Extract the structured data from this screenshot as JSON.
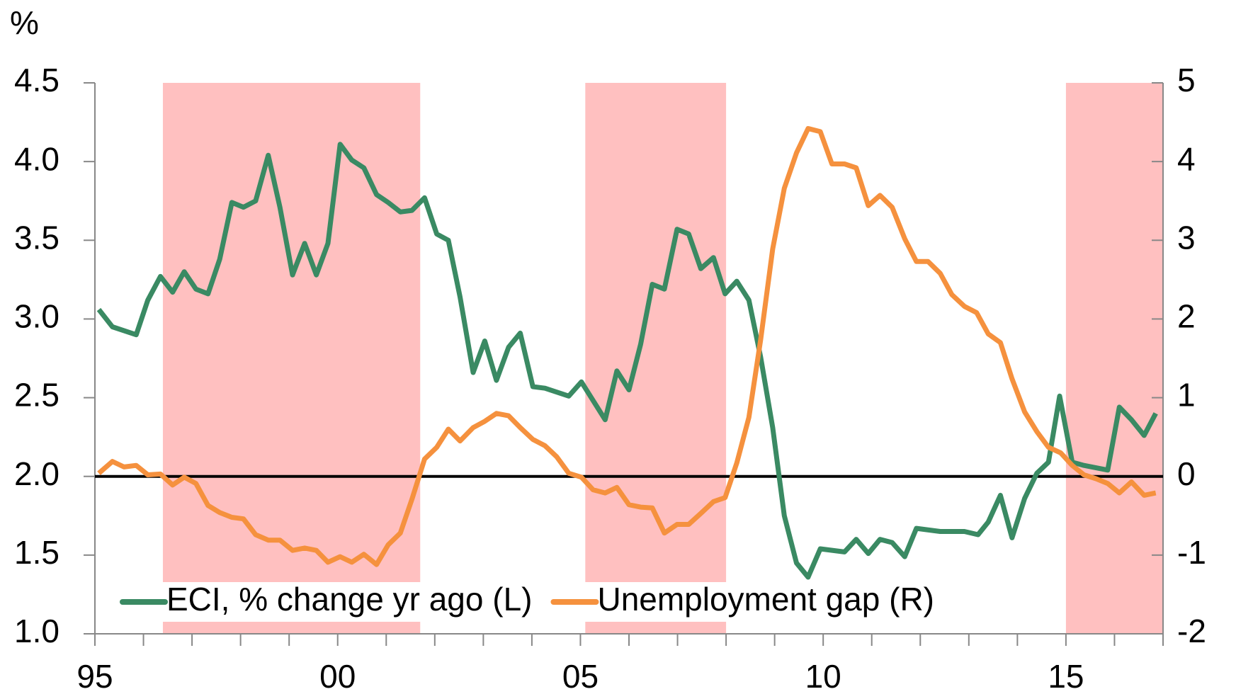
{
  "chart_data": {
    "type": "line",
    "y_unit_label": "%",
    "xlim": [
      1995,
      2017
    ],
    "xticks": [
      {
        "value": 1995,
        "label": "95"
      },
      {
        "value": 2000,
        "label": "00"
      },
      {
        "value": 2005,
        "label": "05"
      },
      {
        "value": 2010,
        "label": "10"
      },
      {
        "value": 2015,
        "label": "15"
      }
    ],
    "xminor_ticks": [
      1996,
      1997,
      1998,
      1999,
      2001,
      2002,
      2003,
      2004,
      2006,
      2007,
      2008,
      2009,
      2011,
      2012,
      2013,
      2014,
      2016,
      2017
    ],
    "ylim": [
      1.0,
      4.5
    ],
    "yticks": [
      {
        "value": 1.0,
        "label": "1.0"
      },
      1.5,
      {
        "value": 2.0,
        "label": "2.0"
      },
      2.5,
      {
        "value": 3.0,
        "label": "3.0"
      },
      3.5,
      {
        "value": 4.0,
        "label": "4.0"
      },
      4.5
    ],
    "y2lim": [
      -2,
      5
    ],
    "y2ticks": [
      -2,
      -1,
      0,
      1,
      2,
      3,
      4,
      5
    ],
    "reference_line": {
      "value": 0,
      "axis": "y2",
      "color": "#000000"
    },
    "shaded_periods": [
      [
        1996.4,
        2001.7
      ],
      [
        2005.1,
        2008.0
      ],
      [
        2015.0,
        2017.0
      ]
    ],
    "shade_color": "#ffc0c0",
    "legend": "bottom-left",
    "series": [
      {
        "name": "ECI, % change yr ago (L)",
        "color": "#3a8a63",
        "axis": "y",
        "x": [
          1995.08,
          1995.36,
          1995.85,
          1996.09,
          1996.35,
          1996.6,
          1996.84,
          1997.08,
          1997.33,
          1997.57,
          1997.82,
          1998.06,
          1998.31,
          1998.57,
          1998.81,
          1999.07,
          1999.32,
          1999.56,
          1999.8,
          2000.05,
          2000.29,
          2000.54,
          2000.8,
          2001.04,
          2001.29,
          2001.53,
          2001.79,
          2002.04,
          2002.28,
          2002.52,
          2002.79,
          2003.03,
          2003.27,
          2003.52,
          2003.76,
          2004.02,
          2004.27,
          2004.76,
          2005.02,
          2005.51,
          2005.75,
          2006.0,
          2006.24,
          2006.48,
          2006.73,
          2006.99,
          2007.23,
          2007.48,
          2007.74,
          2007.98,
          2008.22,
          2008.47,
          2008.71,
          2008.96,
          2009.2,
          2009.45,
          2009.69,
          2009.94,
          2010.44,
          2010.68,
          2010.93,
          2011.17,
          2011.42,
          2011.68,
          2011.92,
          2012.41,
          2012.91,
          2013.19,
          2013.4,
          2013.65,
          2013.89,
          2014.15,
          2014.4,
          2014.64,
          2014.87,
          2015.13,
          2015.37,
          2015.86,
          2016.1,
          2016.35,
          2016.61,
          2016.85
        ],
        "values": [
          3.06,
          2.95,
          2.9,
          3.12,
          3.27,
          3.17,
          3.3,
          3.19,
          3.16,
          3.38,
          3.74,
          3.71,
          3.75,
          4.04,
          3.71,
          3.28,
          3.48,
          3.28,
          3.48,
          4.11,
          4.01,
          3.96,
          3.79,
          3.74,
          3.68,
          3.69,
          3.77,
          3.54,
          3.5,
          3.14,
          2.66,
          2.86,
          2.61,
          2.82,
          2.91,
          2.57,
          2.56,
          2.51,
          2.6,
          2.36,
          2.67,
          2.55,
          2.84,
          3.22,
          3.19,
          3.57,
          3.54,
          3.32,
          3.39,
          3.16,
          3.24,
          3.12,
          2.76,
          2.31,
          1.75,
          1.45,
          1.36,
          1.54,
          1.52,
          1.6,
          1.51,
          1.6,
          1.58,
          1.49,
          1.67,
          1.65,
          1.65,
          1.63,
          1.71,
          1.88,
          1.61,
          1.86,
          2.02,
          2.09,
          2.51,
          2.09,
          2.07,
          2.04,
          2.44,
          2.36,
          2.26,
          2.4
        ]
      },
      {
        "name": "Unemployment gap (R)",
        "color": "#f5913e",
        "axis": "y2",
        "x": [
          1995.08,
          1995.36,
          1995.6,
          1995.85,
          1996.09,
          1996.35,
          1996.6,
          1996.84,
          1997.08,
          1997.33,
          1997.57,
          1997.82,
          1998.06,
          1998.31,
          1998.57,
          1998.81,
          1999.07,
          1999.32,
          1999.56,
          1999.8,
          2000.05,
          2000.29,
          2000.54,
          2000.8,
          2001.04,
          2001.29,
          2001.53,
          2001.79,
          2002.04,
          2002.28,
          2002.52,
          2002.79,
          2003.03,
          2003.27,
          2003.52,
          2003.76,
          2004.02,
          2004.27,
          2004.51,
          2004.76,
          2005.02,
          2005.26,
          2005.51,
          2005.75,
          2006.0,
          2006.24,
          2006.48,
          2006.73,
          2006.99,
          2007.23,
          2007.48,
          2007.74,
          2007.98,
          2008.22,
          2008.47,
          2008.71,
          2008.96,
          2009.2,
          2009.45,
          2009.69,
          2009.94,
          2010.18,
          2010.44,
          2010.68,
          2010.93,
          2011.17,
          2011.42,
          2011.68,
          2011.92,
          2012.16,
          2012.41,
          2012.65,
          2012.91,
          2013.16,
          2013.4,
          2013.65,
          2013.89,
          2014.15,
          2014.4,
          2014.64,
          2014.89,
          2015.13,
          2015.37,
          2015.62,
          2015.86,
          2016.1,
          2016.35,
          2016.61,
          2016.85
        ],
        "values": [
          0.04,
          0.19,
          0.12,
          0.14,
          0.02,
          0.03,
          -0.11,
          -0.01,
          -0.09,
          -0.37,
          -0.46,
          -0.52,
          -0.54,
          -0.74,
          -0.81,
          -0.81,
          -0.94,
          -0.91,
          -0.94,
          -1.09,
          -1.02,
          -1.09,
          -0.99,
          -1.12,
          -0.87,
          -0.72,
          -0.29,
          0.22,
          0.37,
          0.6,
          0.45,
          0.62,
          0.7,
          0.8,
          0.77,
          0.62,
          0.47,
          0.39,
          0.25,
          0.04,
          -0.01,
          -0.17,
          -0.21,
          -0.14,
          -0.36,
          -0.39,
          -0.4,
          -0.72,
          -0.61,
          -0.61,
          -0.47,
          -0.32,
          -0.27,
          0.17,
          0.75,
          1.73,
          2.89,
          3.66,
          4.11,
          4.42,
          4.38,
          3.97,
          3.97,
          3.92,
          3.44,
          3.57,
          3.42,
          3.02,
          2.73,
          2.73,
          2.58,
          2.31,
          2.16,
          2.08,
          1.81,
          1.7,
          1.24,
          0.82,
          0.57,
          0.37,
          0.3,
          0.14,
          0.02,
          -0.03,
          -0.09,
          -0.21,
          -0.07,
          -0.24,
          -0.21
        ]
      }
    ]
  }
}
